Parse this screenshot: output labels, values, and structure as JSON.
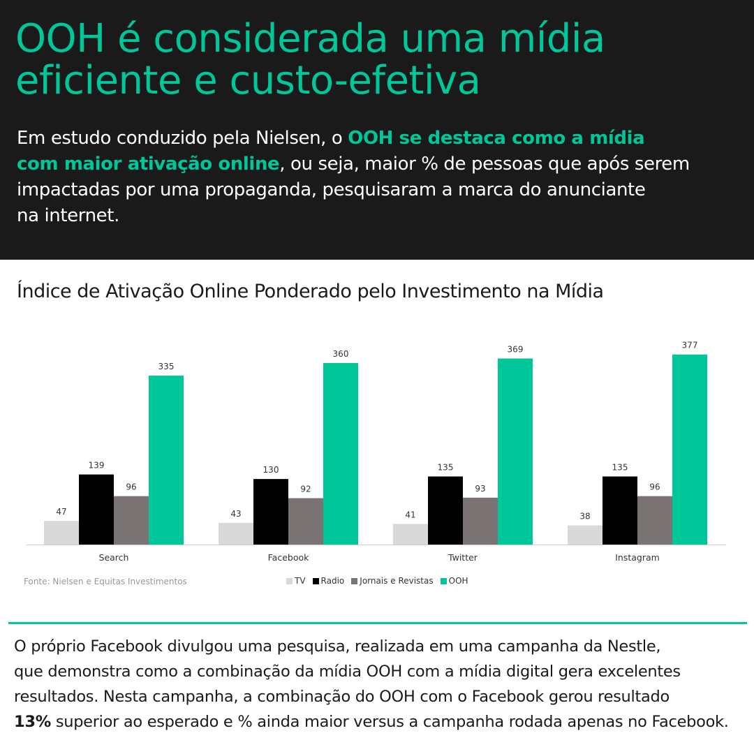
{
  "header": {
    "title_line1": "OOH é considerada uma mídia",
    "title_line2": "eficiente e custo-efetiva",
    "intro_part1": "Em estudo conduzido pela Nielsen, o ",
    "intro_highlight_line1": "OOH se destaca como a mídia",
    "intro_highlight_line2": "com maior ativação online",
    "intro_part2": ", ou seja, maior % de pessoas que após serem",
    "intro_part3": "impactadas por uma propaganda, pesquisaram a marca do anunciante",
    "intro_part4": "na internet."
  },
  "colors": {
    "accent": "#00c799",
    "background_dark": "#1b1a1a"
  },
  "chart_data": {
    "type": "bar",
    "title": "Índice de Ativação Online Ponderado pelo Investimento na Mídia",
    "categories": [
      "Search",
      "Facebook",
      "Twitter",
      "Instagram"
    ],
    "series": [
      {
        "name": "TV",
        "color": "#d9d9d9",
        "values": [
          47,
          43,
          41,
          38
        ]
      },
      {
        "name": "Radio",
        "color": "#000000",
        "values": [
          139,
          130,
          135,
          135
        ]
      },
      {
        "name": "Jornais e Revistas",
        "color": "#7a7373",
        "values": [
          96,
          92,
          93,
          96
        ]
      },
      {
        "name": "OOH",
        "color": "#00c799",
        "values": [
          335,
          360,
          369,
          377
        ]
      }
    ],
    "legend_position": "bottom-center",
    "grid": false,
    "y_axis_visible": false,
    "ylim": [
      0,
      400
    ]
  },
  "source": "Fonte: Nielsen e Equitas Investimentos",
  "footer": {
    "line1": "O próprio Facebook divulgou uma pesquisa, realizada em uma campanha da Nestle,",
    "line2": "que demonstra como a combinação da mídia OOH com a mídia digital gera excelentes",
    "line3": "resultados. Nesta campanha, a combinação do OOH com o Facebook gerou resultado",
    "bold_value": "13%",
    "line4_rest": " superior ao esperado e % ainda maior versus a campanha rodada apenas no Facebook."
  }
}
